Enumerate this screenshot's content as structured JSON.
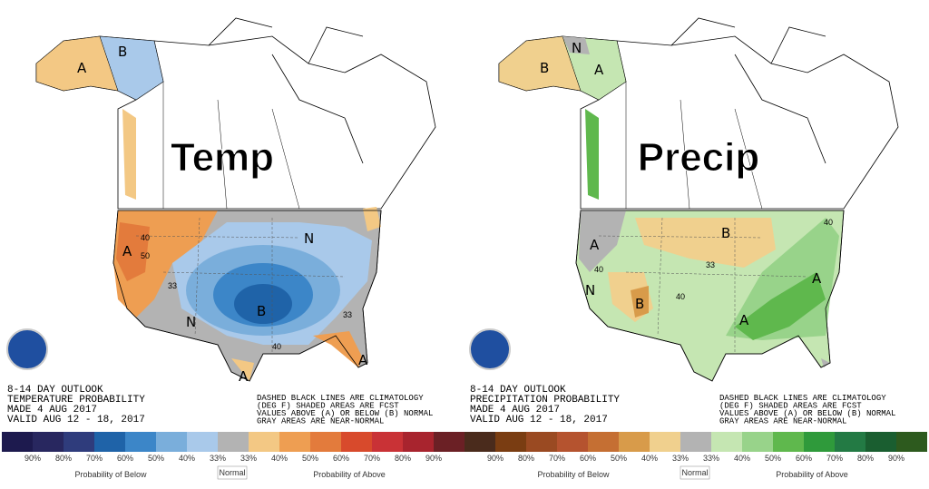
{
  "panels": [
    {
      "title": "Temp",
      "info": [
        "8-14 DAY OUTLOOK",
        "TEMPERATURE PROBABILITY",
        "MADE   4 AUG 2017",
        "VALID   AUG 12 - 18, 2017"
      ],
      "notes": [
        "DASHED BLACK LINES ARE CLIMATOLOGY",
        "(DEG F) SHADED AREAS ARE FCST",
        "VALUES ABOVE (A) OR BELOW (B) NORMAL",
        "GRAY AREAS ARE NEAR-NORMAL"
      ],
      "map_labels": [
        "B",
        "A",
        "A",
        "N",
        "B",
        "A",
        "A",
        "N",
        "33",
        "40",
        "50",
        "33",
        "40"
      ],
      "legend": {
        "colors": [
          "#1d1a4e",
          "#28275f",
          "#2f3c7c",
          "#1f63a8",
          "#3c86c8",
          "#7aaedb",
          "#a9c9ea",
          "#b3b3b3",
          "#f3c884",
          "#ee9e52",
          "#e37b3c",
          "#d84a2c",
          "#c93236",
          "#a8242e",
          "#6b2025"
        ],
        "labels": [
          "90%",
          "80%",
          "70%",
          "60%",
          "50%",
          "40%",
          "33%",
          "33%",
          "40%",
          "50%",
          "60%",
          "70%",
          "80%",
          "90%"
        ],
        "below": "Probability of Below",
        "normal": "Normal",
        "above": "Probability of Above"
      }
    },
    {
      "title": "Precip",
      "info": [
        "8-14 DAY OUTLOOK",
        "PRECIPITATION PROBABILITY",
        "MADE   4 AUG 2017",
        "VALID   AUG 12 - 18, 2017"
      ],
      "notes": [
        "DASHED BLACK LINES ARE CLIMATOLOGY",
        "(DEG F) SHADED AREAS ARE FCST",
        "VALUES ABOVE (A) OR BELOW (B) NORMAL",
        "GRAY AREAS ARE NEAR-NORMAL"
      ],
      "map_labels": [
        "B",
        "A",
        "N",
        "A",
        "B",
        "B",
        "A",
        "A",
        "N",
        "40",
        "33",
        "40",
        "40"
      ],
      "legend": {
        "colors": [
          "#4a2b1c",
          "#7a3d12",
          "#9a4a22",
          "#b5532f",
          "#c56f33",
          "#d89b4a",
          "#f0d08e",
          "#b3b3b3",
          "#c5e6b2",
          "#98d38a",
          "#5fb84d",
          "#2f9a3b",
          "#237a44",
          "#1a5e30",
          "#2d5a1e"
        ],
        "labels": [
          "90%",
          "80%",
          "70%",
          "60%",
          "50%",
          "40%",
          "33%",
          "33%",
          "40%",
          "50%",
          "60%",
          "70%",
          "80%",
          "90%"
        ],
        "below": "Probability of Below",
        "normal": "Normal",
        "above": "Probability of Above"
      }
    }
  ]
}
